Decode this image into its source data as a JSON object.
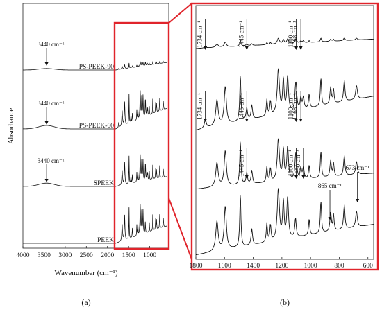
{
  "chart_data": [
    {
      "id": "a",
      "type": "line",
      "panel_label": "(a)",
      "xlabel": "Wavenumber (cm⁻¹)",
      "ylabel": "Absorbance",
      "xlim": [
        4000,
        550
      ],
      "x_reversed": true,
      "x_ticks": [
        "4000",
        "3500",
        "3000",
        "2500",
        "2000",
        "1500",
        "1000"
      ],
      "series": [
        {
          "name": "PS-PEEK-90"
        },
        {
          "name": "PS-PEEK-60"
        },
        {
          "name": "SPEEK"
        },
        {
          "name": "PEEK"
        }
      ],
      "annotations": [
        {
          "text": "3440 cm⁻¹",
          "x": 3440,
          "series": "PS-PEEK-90"
        },
        {
          "text": "3440 cm⁻¹",
          "x": 3440,
          "series": "PS-PEEK-60"
        },
        {
          "text": "3440 cm⁻¹",
          "x": 3440,
          "series": "SPEEK"
        }
      ],
      "highlight_region": {
        "x_from": 1800,
        "x_to": 550,
        "color": "#e0242b"
      }
    },
    {
      "id": "b",
      "type": "line",
      "panel_label": "(b)",
      "xlim": [
        1800,
        560
      ],
      "x_reversed": true,
      "x_ticks": [
        "1800",
        "1600",
        "1400",
        "1200",
        "1000",
        "800",
        "600"
      ],
      "series": [
        {
          "ref": "PS-PEEK-90"
        },
        {
          "ref": "PS-PEEK-60"
        },
        {
          "ref": "SPEEK"
        },
        {
          "ref": "PEEK"
        }
      ],
      "annotations": [
        {
          "text": "1734 cm⁻¹",
          "x": 1734,
          "series": 0
        },
        {
          "text": "1445 cm⁻¹",
          "x": 1445,
          "series": 0
        },
        {
          "text": "1100 cm⁻¹",
          "x": 1100,
          "series": 0
        },
        {
          "text": "1068 cm⁻¹",
          "x": 1068,
          "series": 0
        },
        {
          "text": "1734 cm⁻¹",
          "x": 1734,
          "series": 1
        },
        {
          "text": "1445 cm⁻¹",
          "x": 1445,
          "series": 1
        },
        {
          "text": "1100 cm⁻¹",
          "x": 1100,
          "series": 1
        },
        {
          "text": "1068 cm⁻¹",
          "x": 1068,
          "series": 1
        },
        {
          "text": "1445 cm⁻¹",
          "x": 1445,
          "series": 2
        },
        {
          "text": "1100 cm⁻¹",
          "x": 1100,
          "series": 2
        },
        {
          "text": "1050 cm⁻¹",
          "x": 1050,
          "series": 2
        },
        {
          "text": "865 cm⁻¹",
          "x": 865,
          "series": 3
        },
        {
          "text": "673 cm⁻¹",
          "x": 673,
          "series": 3
        }
      ],
      "frame_color": "#e0242b"
    }
  ]
}
